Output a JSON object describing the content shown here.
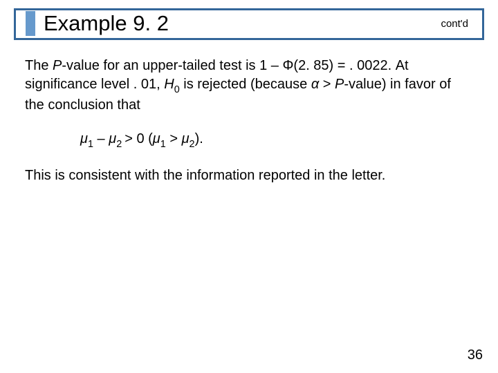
{
  "title": "Example 9. 2",
  "contd": "cont'd",
  "colors": {
    "title_border": "#336699",
    "title_accent": "#6699cc"
  },
  "body": {
    "p1_a": "The ",
    "p1_pvar": "P",
    "p1_b": "-value for an upper-tailed test is 1 – ",
    "p1_phi": "Φ",
    "p1_c": "(2. 85) = . 0022. At significance level . 01, ",
    "p1_h": "H",
    "p1_h_sub": "0",
    "p1_d": " is rejected (because ",
    "p1_alpha": "α",
    "p1_e": " > ",
    "p1_pvar2": "P",
    "p1_f": "-value) in favor of the conclusion that",
    "eq_mu1": "μ",
    "eq_s1": "1",
    "eq_minus": " – ",
    "eq_mu2": "μ",
    "eq_s2": "2 ",
    "eq_gt0": "> 0 (",
    "eq_mu3": "μ",
    "eq_s3": "1",
    "eq_gt": " > ",
    "eq_mu4": "μ",
    "eq_s4": "2",
    "eq_close": ").",
    "p2": "This is consistent with the information reported in the letter."
  },
  "page_number": "36"
}
